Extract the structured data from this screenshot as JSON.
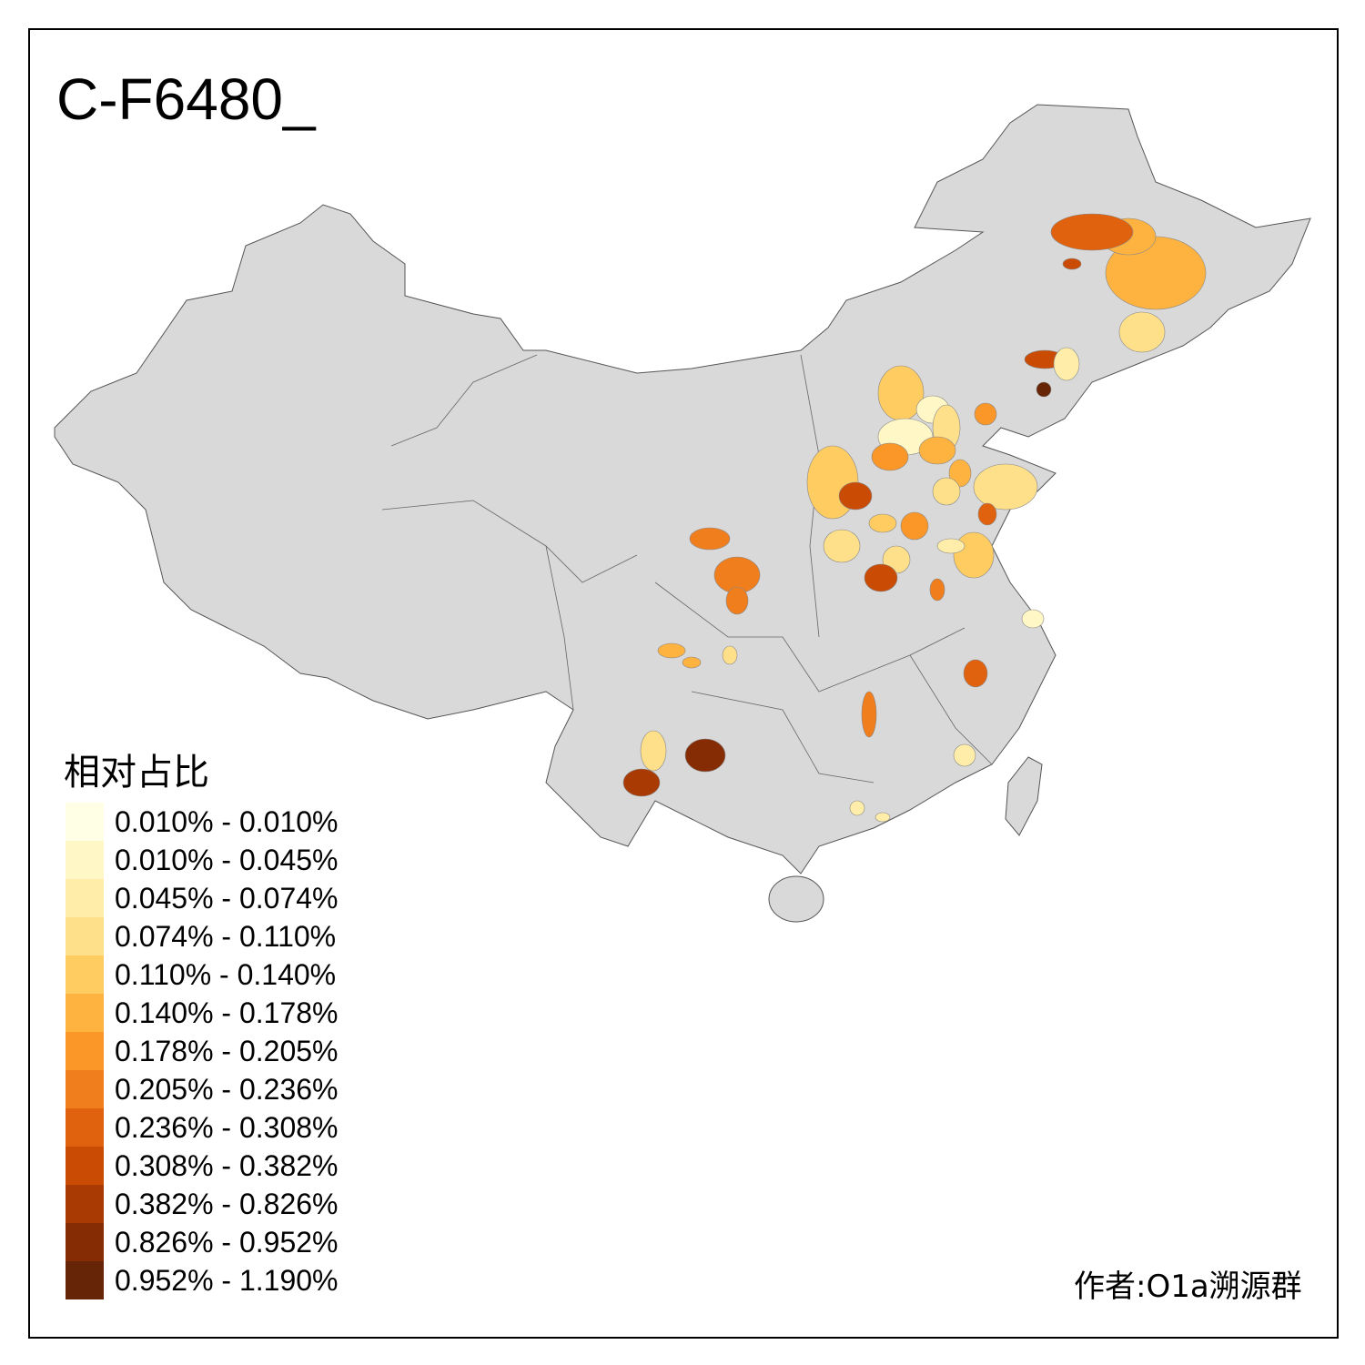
{
  "title": "C-F6480_",
  "legend": {
    "title": "相对占比",
    "items": [
      {
        "label": "0.010% - 0.010%",
        "color": "#FFFFE5"
      },
      {
        "label": "0.010% - 0.045%",
        "color": "#FFF8C6"
      },
      {
        "label": "0.045% - 0.074%",
        "color": "#FFEDA9"
      },
      {
        "label": "0.074% - 0.110%",
        "color": "#FEE08B"
      },
      {
        "label": "0.110% - 0.140%",
        "color": "#FECC61"
      },
      {
        "label": "0.140% - 0.178%",
        "color": "#FEB340"
      },
      {
        "label": "0.178% - 0.205%",
        "color": "#FB9729"
      },
      {
        "label": "0.205% - 0.236%",
        "color": "#F07E1D"
      },
      {
        "label": "0.236% - 0.308%",
        "color": "#E0620F"
      },
      {
        "label": "0.308% - 0.382%",
        "color": "#CA4B04"
      },
      {
        "label": "0.382% - 0.826%",
        "color": "#A93A03"
      },
      {
        "label": "0.826% - 0.952%",
        "color": "#852C04"
      },
      {
        "label": "0.952% - 1.190%",
        "color": "#662506"
      }
    ]
  },
  "map": {
    "base_color": "#D9D9D9",
    "border_color": "#555555"
  },
  "author": "作者:O1a溯源群"
}
